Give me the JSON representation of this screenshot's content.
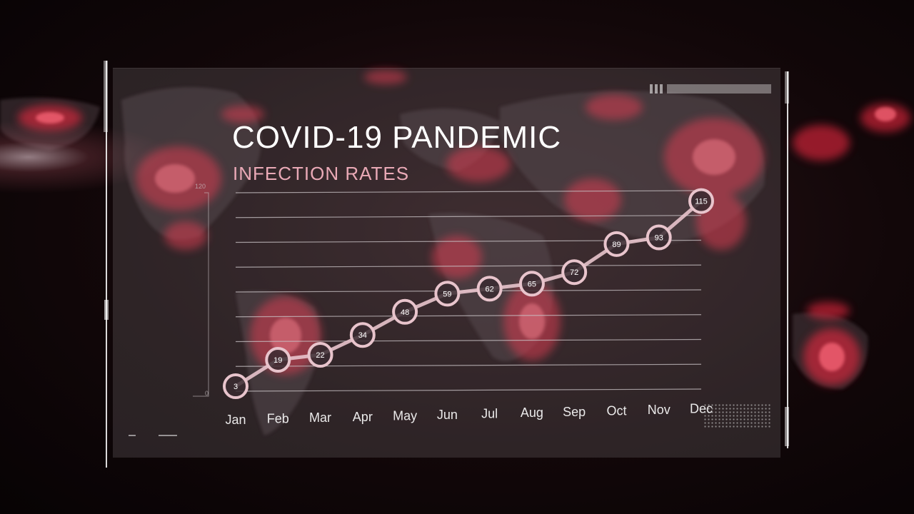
{
  "header": {
    "title": "COVID-19 PANDEMIC",
    "subtitle": "INFECTION RATES"
  },
  "colors": {
    "accent": "#e9a9b6",
    "hotspot": "#ff2a45",
    "line": "#e8c4cc",
    "grid": "#c9c2c5"
  },
  "chart_data": {
    "type": "line",
    "title": "COVID-19 PANDEMIC",
    "subtitle": "INFECTION RATES",
    "categories": [
      "Jan",
      "Feb",
      "Mar",
      "Apr",
      "May",
      "Jun",
      "Jul",
      "Aug",
      "Sep",
      "Oct",
      "Nov",
      "Dec"
    ],
    "values": [
      3,
      19,
      22,
      34,
      48,
      59,
      62,
      65,
      72,
      89,
      93,
      115
    ],
    "ylim": [
      0,
      120
    ],
    "y_tick_labels": [
      "0",
      "120"
    ],
    "grid": true,
    "data_labels": true
  }
}
